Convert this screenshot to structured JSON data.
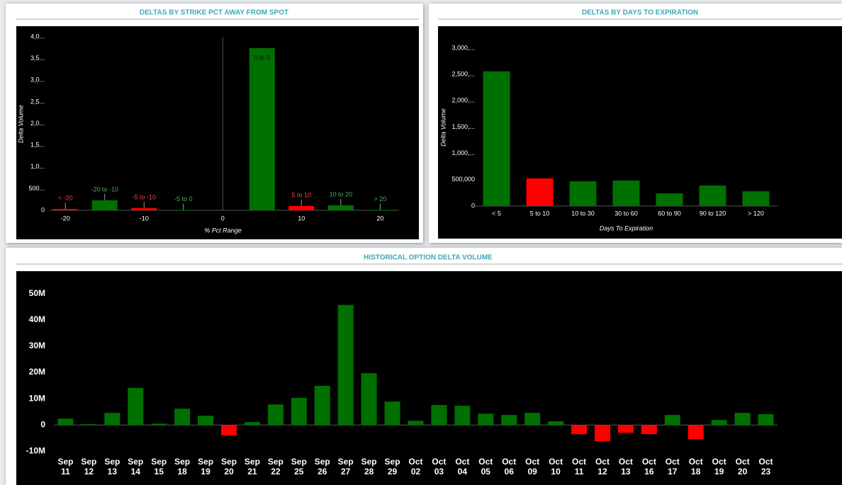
{
  "chart_data": [
    {
      "type": "bar",
      "title": "DELTAS BY STRIKE PCT AWAY FROM SPOT",
      "xlabel": "% Pct Range",
      "ylabel": "Delta Volume",
      "x": [
        -20,
        -15,
        -10,
        -5,
        5,
        10,
        15,
        20
      ],
      "categories": [
        "< -20",
        "-20 to -10",
        "-5 to -10",
        "-5 to 0",
        "0 to 5",
        "5 to 10",
        "10 to 20",
        "> 20"
      ],
      "values": [
        30000,
        230000,
        50000,
        5000,
        3740000,
        100000,
        115000,
        5000
      ],
      "colors": [
        "#ff0000",
        "#007000",
        "#ff0000",
        "#007000",
        "#007000",
        "#ff0000",
        "#007000",
        "#007000"
      ],
      "xlim": [
        -22,
        22.4
      ],
      "xticks": [
        -20,
        -10,
        0,
        10,
        20
      ],
      "ylim": [
        0,
        4000000
      ],
      "yticks": [
        0,
        {
          "value": 500000,
          "label": "500..."
        },
        {
          "value": 1000000,
          "label": "1,0..."
        },
        {
          "value": 1500000,
          "label": "1,5..."
        },
        {
          "value": 2000000,
          "label": "2,0..."
        },
        {
          "value": 2500000,
          "label": "2,5..."
        },
        {
          "value": 3000000,
          "label": "3,0..."
        },
        {
          "value": 3500000,
          "label": "3,5..."
        },
        {
          "value": 4000000,
          "label": "4,0..."
        }
      ]
    },
    {
      "type": "bar",
      "title": "DELTAS BY DAYS TO EXPIRATION",
      "xlabel": "Days To Expiration",
      "ylabel": "Delta Volume",
      "categories": [
        "< 5",
        "5 to 10",
        "10 to 30",
        "30 to 60",
        "60 to 90",
        "90 to 120",
        "> 120"
      ],
      "values": [
        2560000,
        525000,
        470000,
        485000,
        240000,
        390000,
        280000
      ],
      "colors": [
        "#007000",
        "#ff0000",
        "#007000",
        "#007000",
        "#007000",
        "#007000",
        "#007000"
      ],
      "ylim": [
        0,
        3000000
      ],
      "yticks": [
        0,
        {
          "value": 500000,
          "label": "500,000"
        },
        {
          "value": 1000000,
          "label": "1,000,..."
        },
        {
          "value": 1500000,
          "label": "1,500,..."
        },
        {
          "value": 2000000,
          "label": "2,000,..."
        },
        {
          "value": 2500000,
          "label": "2,500,..."
        },
        {
          "value": 3000000,
          "label": "3,000,..."
        }
      ]
    },
    {
      "type": "bar",
      "title": "HISTORICAL OPTION DELTA VOLUME",
      "categories": [
        "Sep 11",
        "Sep 12",
        "Sep 13",
        "Sep 14",
        "Sep 15",
        "Sep 18",
        "Sep 19",
        "Sep 20",
        "Sep 21",
        "Sep 22",
        "Sep 25",
        "Sep 26",
        "Sep 27",
        "Sep 28",
        "Sep 29",
        "Oct 02",
        "Oct 03",
        "Oct 04",
        "Oct 05",
        "Oct 06",
        "Oct 09",
        "Oct 10",
        "Oct 11",
        "Oct 12",
        "Oct 13",
        "Oct 16",
        "Oct 17",
        "Oct 18",
        "Oct 19",
        "Oct 20",
        "Oct 23"
      ],
      "values": [
        2400000,
        300000,
        4600000,
        14100000,
        500000,
        6200000,
        3500000,
        -4000000,
        1100000,
        7800000,
        10300000,
        14900000,
        45700000,
        19700000,
        8900000,
        1600000,
        7600000,
        7300000,
        4300000,
        3800000,
        4600000,
        1400000,
        -3500000,
        -6200000,
        -3000000,
        -3500000,
        3800000,
        -5400000,
        1900000,
        4600000,
        4100000
      ],
      "colors": [
        "#007000",
        "#007000",
        "#007000",
        "#007000",
        "#007000",
        "#007000",
        "#007000",
        "#ff0000",
        "#007000",
        "#007000",
        "#007000",
        "#007000",
        "#007000",
        "#007000",
        "#007000",
        "#007000",
        "#007000",
        "#007000",
        "#007000",
        "#007000",
        "#007000",
        "#007000",
        "#ff0000",
        "#ff0000",
        "#ff0000",
        "#ff0000",
        "#007000",
        "#ff0000",
        "#007000",
        "#007000",
        "#007000"
      ],
      "ylim": [
        -11000000,
        58000000
      ],
      "yticks": [
        {
          "value": -10000000,
          "label": "-10M"
        },
        0,
        {
          "value": 10000000,
          "label": "10M"
        },
        {
          "value": 20000000,
          "label": "20M"
        },
        {
          "value": 30000000,
          "label": "30M"
        },
        {
          "value": 40000000,
          "label": "40M"
        },
        {
          "value": 50000000,
          "label": "50M"
        }
      ]
    }
  ]
}
